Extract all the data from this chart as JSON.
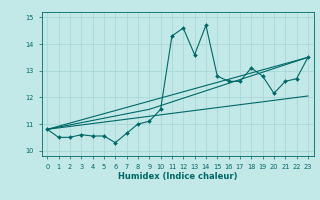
{
  "title": "",
  "xlabel": "Humidex (Indice chaleur)",
  "ylabel": "",
  "bg_color": "#c2e8e8",
  "line_color": "#006868",
  "grid_color": "#a8d8d8",
  "xlim": [
    -0.5,
    23.5
  ],
  "ylim": [
    9.8,
    15.2
  ],
  "yticks": [
    10,
    11,
    12,
    13,
    14,
    15
  ],
  "xticks": [
    0,
    1,
    2,
    3,
    4,
    5,
    6,
    7,
    8,
    9,
    10,
    11,
    12,
    13,
    14,
    15,
    16,
    17,
    18,
    19,
    20,
    21,
    22,
    23
  ],
  "series1_x": [
    0,
    1,
    2,
    3,
    4,
    5,
    6,
    7,
    8,
    9,
    10,
    11,
    12,
    13,
    14,
    15,
    16,
    17,
    18,
    19,
    20,
    21,
    22,
    23
  ],
  "series1_y": [
    10.8,
    10.5,
    10.5,
    10.6,
    10.55,
    10.55,
    10.3,
    10.65,
    11.0,
    11.1,
    11.55,
    14.3,
    14.6,
    13.6,
    14.7,
    12.8,
    12.6,
    12.6,
    13.1,
    12.8,
    12.15,
    12.6,
    12.7,
    13.5
  ],
  "series2_x": [
    0,
    9,
    23
  ],
  "series2_y": [
    10.8,
    11.55,
    13.5
  ],
  "series3_x": [
    0,
    23
  ],
  "series3_y": [
    10.8,
    12.05
  ],
  "series4_x": [
    0,
    23
  ],
  "series4_y": [
    10.8,
    13.5
  ],
  "lw": 0.8,
  "markersize": 2.0,
  "tick_labelsize": 4.8,
  "xlabel_fontsize": 6.0
}
